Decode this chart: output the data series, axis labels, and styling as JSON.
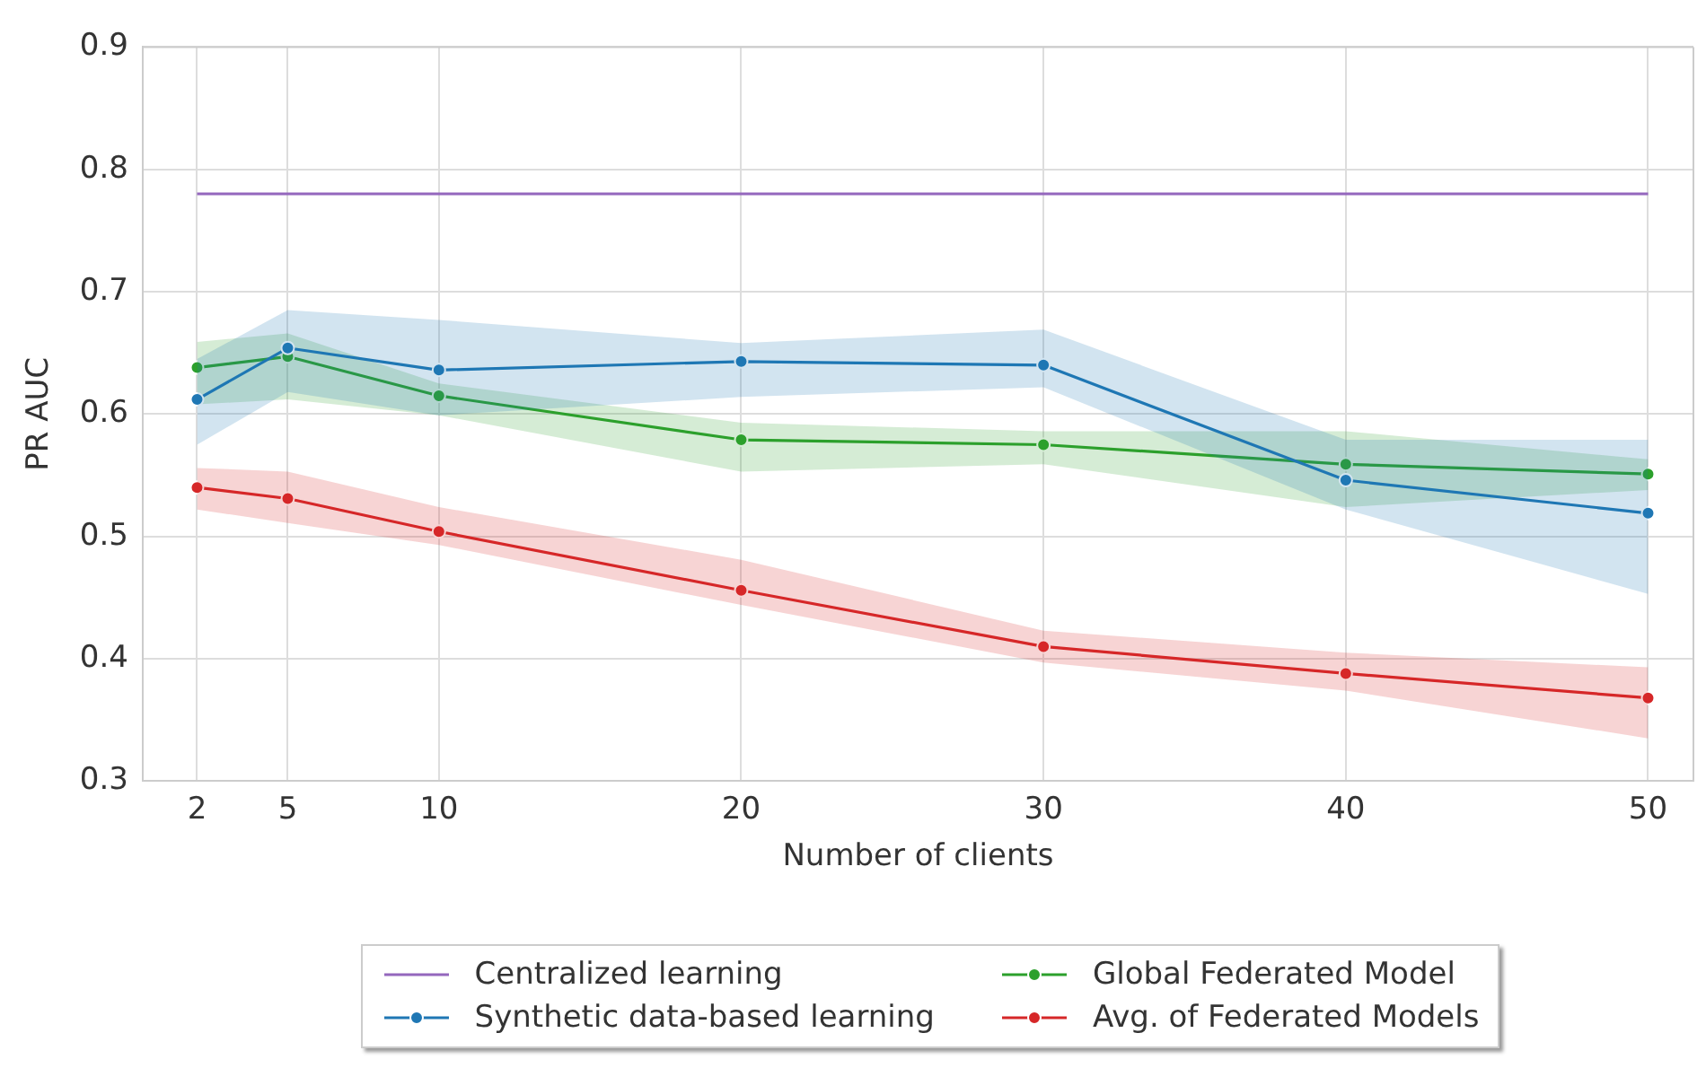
{
  "chart_data": {
    "type": "line",
    "xlabel": "Number of clients",
    "ylabel": "PR AUC",
    "x": [
      2,
      5,
      10,
      20,
      30,
      40,
      50
    ],
    "xlim": [
      0.2,
      51.5
    ],
    "xticks": [
      2,
      5,
      10,
      20,
      30,
      40,
      50
    ],
    "ylim": [
      0.3,
      0.9
    ],
    "yticks": [
      0.3,
      0.4,
      0.5,
      0.6,
      0.7,
      0.8,
      0.9
    ],
    "grid": true,
    "legend": "bottom",
    "series": [
      {
        "name": "Centralized learning",
        "color": "#9467bd",
        "marker": "none",
        "x": [
          2,
          50
        ],
        "values": [
          0.78,
          0.78
        ]
      },
      {
        "name": "Synthetic data-based learning",
        "color": "#1f77b4",
        "marker": "circle",
        "values": [
          0.612,
          0.654,
          0.636,
          0.643,
          0.64,
          0.546,
          0.519
        ],
        "lower": [
          0.575,
          0.618,
          0.599,
          0.614,
          0.622,
          0.522,
          0.453
        ],
        "upper": [
          0.645,
          0.685,
          0.677,
          0.658,
          0.669,
          0.579,
          0.579
        ]
      },
      {
        "name": "Global Federated Model",
        "color": "#2ca02c",
        "marker": "circle",
        "values": [
          0.638,
          0.647,
          0.615,
          0.579,
          0.575,
          0.559,
          0.551
        ],
        "lower": [
          0.608,
          0.612,
          0.599,
          0.553,
          0.559,
          0.524,
          0.538
        ],
        "upper": [
          0.659,
          0.666,
          0.625,
          0.593,
          0.586,
          0.586,
          0.563
        ]
      },
      {
        "name": "Avg. of Federated Models",
        "color": "#d62728",
        "marker": "circle",
        "values": [
          0.54,
          0.531,
          0.504,
          0.456,
          0.41,
          0.388,
          0.368
        ],
        "lower": [
          0.522,
          0.511,
          0.493,
          0.444,
          0.397,
          0.374,
          0.335
        ],
        "upper": [
          0.556,
          0.553,
          0.524,
          0.481,
          0.423,
          0.405,
          0.393
        ]
      }
    ]
  }
}
